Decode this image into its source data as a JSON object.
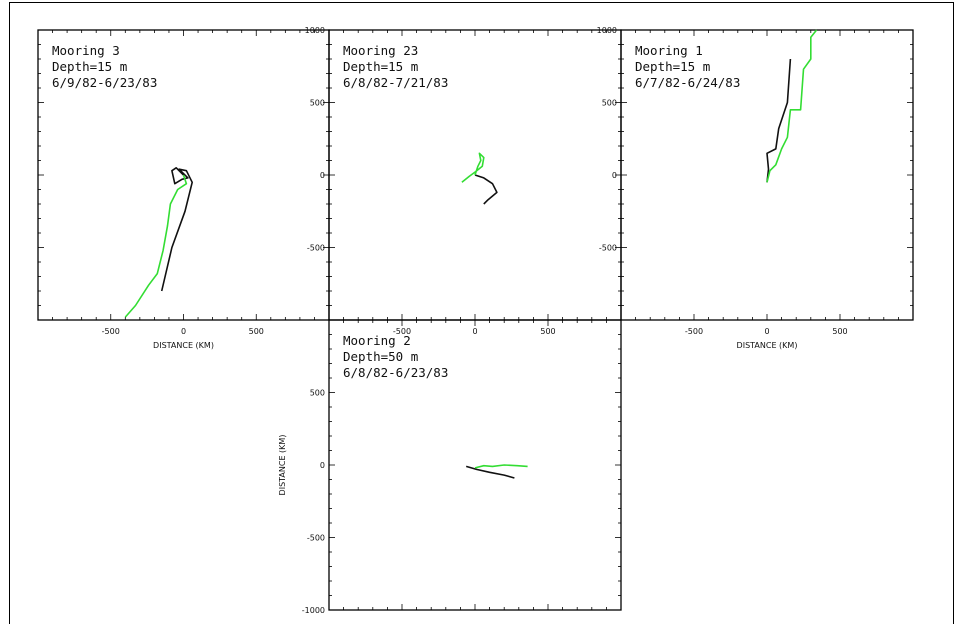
{
  "figure": {
    "xlabel": "DISTANCE (KM)",
    "ylabel": "DISTANCE (KM)",
    "line_colors": {
      "black": "#111111",
      "green": "#33dd33"
    }
  },
  "chart_data": [
    {
      "type": "line",
      "panel": "top-left",
      "title_lines": [
        "Mooring 3",
        "Depth=15 m",
        "6/9/82-6/23/83"
      ],
      "xlabel": "DISTANCE (KM)",
      "ylabel": "",
      "xlim": [
        -1000,
        1000
      ],
      "ylim": [
        -1000,
        1000
      ],
      "xticks": [
        -500,
        0,
        500
      ],
      "yticks": [],
      "series": [
        {
          "color": "black",
          "points": [
            [
              0,
              0
            ],
            [
              -50,
              50
            ],
            [
              -80,
              30
            ],
            [
              -60,
              -60
            ],
            [
              -10,
              -30
            ],
            [
              30,
              -20
            ],
            [
              -30,
              40
            ],
            [
              20,
              30
            ],
            [
              60,
              -50
            ],
            [
              10,
              -250
            ],
            [
              -80,
              -500
            ],
            [
              -150,
              -800
            ]
          ]
        },
        {
          "color": "green",
          "points": [
            [
              0,
              0
            ],
            [
              20,
              -60
            ],
            [
              -40,
              -100
            ],
            [
              -90,
              -200
            ],
            [
              -110,
              -350
            ],
            [
              -140,
              -520
            ],
            [
              -180,
              -680
            ],
            [
              -240,
              -760
            ],
            [
              -330,
              -900
            ],
            [
              -400,
              -980
            ]
          ]
        }
      ]
    },
    {
      "type": "line",
      "panel": "top-middle",
      "title_lines": [
        "Mooring 23",
        "Depth=15 m",
        "6/8/82-7/21/83"
      ],
      "xlabel": "",
      "ylabel": "",
      "xlim": [
        -1000,
        1000
      ],
      "ylim": [
        -1000,
        1000
      ],
      "xticks": [
        -500,
        0,
        500
      ],
      "yticks": [
        1000,
        500,
        0,
        -500
      ],
      "series": [
        {
          "color": "black",
          "points": [
            [
              0,
              0
            ],
            [
              60,
              -20
            ],
            [
              120,
              -60
            ],
            [
              150,
              -120
            ],
            [
              90,
              -170
            ],
            [
              60,
              -200
            ]
          ]
        },
        {
          "color": "green",
          "points": [
            [
              0,
              0
            ],
            [
              20,
              60
            ],
            [
              40,
              100
            ],
            [
              30,
              150
            ],
            [
              60,
              120
            ],
            [
              50,
              60
            ],
            [
              0,
              20
            ],
            [
              -40,
              -10
            ],
            [
              -90,
              -50
            ]
          ]
        }
      ]
    },
    {
      "type": "line",
      "panel": "top-right",
      "title_lines": [
        "Mooring 1",
        "Depth=15 m",
        "6/7/82-6/24/83"
      ],
      "xlabel": "DISTANCE (KM)",
      "ylabel": "",
      "xlim": [
        -1000,
        1000
      ],
      "ylim": [
        -1000,
        1000
      ],
      "xticks": [
        -500,
        0,
        500
      ],
      "yticks": [
        1000,
        500,
        0,
        -500
      ],
      "series": [
        {
          "color": "black",
          "points": [
            [
              0,
              -50
            ],
            [
              10,
              40
            ],
            [
              0,
              150
            ],
            [
              60,
              180
            ],
            [
              80,
              320
            ],
            [
              140,
              500
            ],
            [
              160,
              800
            ]
          ]
        },
        {
          "color": "green",
          "points": [
            [
              0,
              -50
            ],
            [
              20,
              30
            ],
            [
              60,
              70
            ],
            [
              100,
              180
            ],
            [
              140,
              260
            ],
            [
              160,
              450
            ],
            [
              230,
              450
            ],
            [
              250,
              730
            ],
            [
              300,
              800
            ],
            [
              300,
              950
            ],
            [
              340,
              1000
            ]
          ]
        }
      ]
    },
    {
      "type": "line",
      "panel": "bottom-middle",
      "title_lines": [
        "Mooring 2",
        "Depth=50 m",
        "6/8/82-6/23/83"
      ],
      "xlabel": "",
      "ylabel": "DISTANCE (KM)",
      "xlim": [
        -1000,
        1000
      ],
      "ylim": [
        -1000,
        1000
      ],
      "xticks": [],
      "yticks": [
        500,
        0,
        -500,
        -1000
      ],
      "series": [
        {
          "color": "black",
          "points": [
            [
              -60,
              -10
            ],
            [
              10,
              -30
            ],
            [
              100,
              -50
            ],
            [
              200,
              -70
            ],
            [
              270,
              -90
            ]
          ]
        },
        {
          "color": "green",
          "points": [
            [
              0,
              -20
            ],
            [
              60,
              -5
            ],
            [
              120,
              -10
            ],
            [
              200,
              0
            ],
            [
              290,
              -5
            ],
            [
              360,
              -10
            ]
          ]
        }
      ]
    }
  ]
}
